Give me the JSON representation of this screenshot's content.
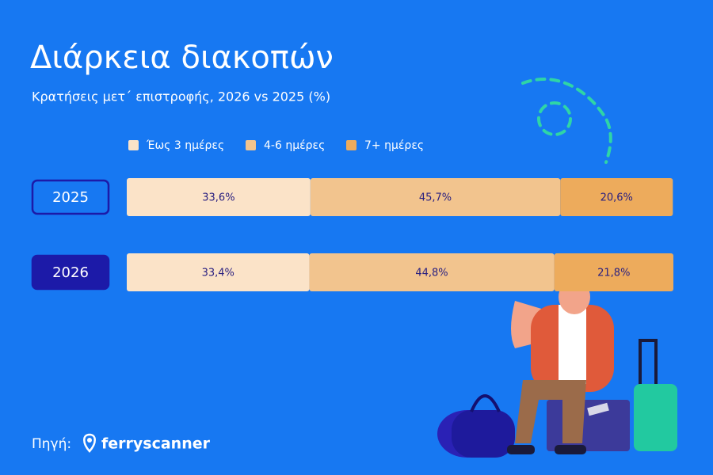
{
  "chart_data": {
    "type": "stacked-bar-horizontal",
    "title": "Διάρκεια διακοπών",
    "subtitle": "Κρατήσεις μετ΄ επιστροφής, 2026 vs 2025 (%)",
    "categories": [
      "2025",
      "2026"
    ],
    "xlim": [
      0,
      100
    ],
    "series": [
      {
        "name": "Έως 3 ημέρες",
        "color": "#fbe3c8",
        "values": [
          33.6,
          33.4
        ],
        "value_labels": [
          "33,6%",
          "33,4%"
        ]
      },
      {
        "name": "4-6 ημέρες",
        "color": "#f2c48e",
        "values": [
          45.7,
          44.8
        ],
        "value_labels": [
          "45,7%",
          "44,8%"
        ]
      },
      {
        "name": "7+ ημέρες",
        "color": "#edab5c",
        "values": [
          20.6,
          21.8
        ],
        "value_labels": [
          "20,6%",
          "21,8%"
        ]
      }
    ],
    "source_label": "Πηγή:",
    "source_name": "ferryscanner"
  }
}
